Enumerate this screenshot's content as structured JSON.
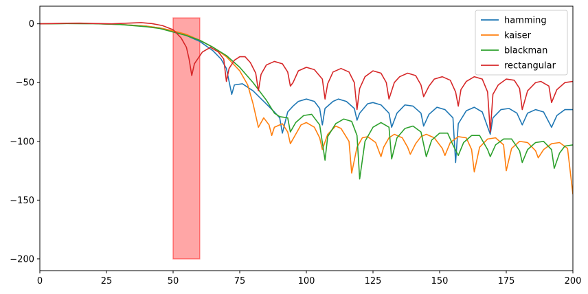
{
  "chart_data": {
    "type": "line",
    "title": "",
    "xlabel": "",
    "ylabel": "",
    "xlim": [
      0,
      200
    ],
    "ylim": [
      -210,
      15
    ],
    "xticks": [
      0,
      25,
      50,
      75,
      100,
      125,
      150,
      175,
      200
    ],
    "yticks": [
      0,
      -50,
      -100,
      -150,
      -200
    ],
    "grid": false,
    "legend_position": "top-right",
    "highlight": {
      "x0": 50,
      "x1": 60,
      "y0": -200,
      "y1": 5,
      "color": "#ff0000",
      "opacity": 0.35
    },
    "series": [
      {
        "name": "hamming",
        "color": "#1f77b4",
        "points": [
          [
            0,
            0
          ],
          [
            10,
            0.3
          ],
          [
            20,
            0.2
          ],
          [
            30,
            -0.5
          ],
          [
            40,
            -2
          ],
          [
            45,
            -3.5
          ],
          [
            50,
            -6
          ],
          [
            55,
            -10
          ],
          [
            60,
            -15
          ],
          [
            65,
            -23
          ],
          [
            68,
            -30
          ],
          [
            70,
            -38
          ],
          [
            72,
            -60
          ],
          [
            73,
            -52
          ],
          [
            76,
            -51
          ],
          [
            80,
            -57
          ],
          [
            84,
            -66
          ],
          [
            88,
            -75
          ],
          [
            90,
            -80
          ],
          [
            91,
            -93
          ],
          [
            93,
            -75
          ],
          [
            95,
            -70
          ],
          [
            97,
            -66
          ],
          [
            100,
            -64
          ],
          [
            103,
            -66
          ],
          [
            105,
            -72
          ],
          [
            106,
            -86
          ],
          [
            107,
            -72
          ],
          [
            110,
            -66
          ],
          [
            112,
            -64
          ],
          [
            115,
            -66
          ],
          [
            118,
            -72
          ],
          [
            119,
            -82
          ],
          [
            120,
            -76
          ],
          [
            123,
            -68
          ],
          [
            125,
            -67
          ],
          [
            128,
            -69
          ],
          [
            131,
            -76
          ],
          [
            132,
            -88
          ],
          [
            134,
            -76
          ],
          [
            137,
            -69
          ],
          [
            140,
            -70
          ],
          [
            143,
            -76
          ],
          [
            144,
            -87
          ],
          [
            146,
            -77
          ],
          [
            149,
            -71
          ],
          [
            152,
            -73
          ],
          [
            155,
            -80
          ],
          [
            156,
            -118
          ],
          [
            157,
            -85
          ],
          [
            160,
            -74
          ],
          [
            163,
            -71
          ],
          [
            166,
            -75
          ],
          [
            169,
            -94
          ],
          [
            170,
            -80
          ],
          [
            173,
            -73
          ],
          [
            176,
            -72
          ],
          [
            179,
            -76
          ],
          [
            181,
            -86
          ],
          [
            183,
            -76
          ],
          [
            186,
            -73
          ],
          [
            189,
            -75
          ],
          [
            192,
            -88
          ],
          [
            194,
            -78
          ],
          [
            197,
            -73
          ],
          [
            200,
            -73
          ]
        ]
      },
      {
        "name": "kaiser",
        "color": "#ff7f0e",
        "points": [
          [
            0,
            0
          ],
          [
            10,
            0.3
          ],
          [
            20,
            0.2
          ],
          [
            30,
            -0.5
          ],
          [
            40,
            -2
          ],
          [
            45,
            -3.5
          ],
          [
            50,
            -6
          ],
          [
            55,
            -9
          ],
          [
            60,
            -14
          ],
          [
            65,
            -20
          ],
          [
            70,
            -28
          ],
          [
            75,
            -40
          ],
          [
            78,
            -52
          ],
          [
            80,
            -68
          ],
          [
            82,
            -88
          ],
          [
            84,
            -80
          ],
          [
            86,
            -86
          ],
          [
            87,
            -95
          ],
          [
            88,
            -88
          ],
          [
            91,
            -85
          ],
          [
            93,
            -92
          ],
          [
            94,
            -102
          ],
          [
            96,
            -94
          ],
          [
            98,
            -86
          ],
          [
            100,
            -84
          ],
          [
            103,
            -88
          ],
          [
            105,
            -97
          ],
          [
            106,
            -107
          ],
          [
            108,
            -94
          ],
          [
            111,
            -87
          ],
          [
            113,
            -89
          ],
          [
            116,
            -100
          ],
          [
            117,
            -127
          ],
          [
            119,
            -105
          ],
          [
            121,
            -97
          ],
          [
            123,
            -96
          ],
          [
            126,
            -101
          ],
          [
            128,
            -113
          ],
          [
            129,
            -105
          ],
          [
            131,
            -97
          ],
          [
            133,
            -94
          ],
          [
            136,
            -97
          ],
          [
            138,
            -105
          ],
          [
            139,
            -111
          ],
          [
            141,
            -102
          ],
          [
            143,
            -96
          ],
          [
            145,
            -94
          ],
          [
            148,
            -97
          ],
          [
            151,
            -106
          ],
          [
            152,
            -112
          ],
          [
            154,
            -101
          ],
          [
            157,
            -96
          ],
          [
            160,
            -97
          ],
          [
            162,
            -107
          ],
          [
            163,
            -126
          ],
          [
            165,
            -105
          ],
          [
            168,
            -98
          ],
          [
            171,
            -97
          ],
          [
            174,
            -103
          ],
          [
            175,
            -125
          ],
          [
            177,
            -106
          ],
          [
            180,
            -100
          ],
          [
            183,
            -101
          ],
          [
            186,
            -108
          ],
          [
            187,
            -114
          ],
          [
            189,
            -107
          ],
          [
            192,
            -102
          ],
          [
            195,
            -101
          ],
          [
            198,
            -106
          ],
          [
            200,
            -145
          ]
        ]
      },
      {
        "name": "blackman",
        "color": "#2ca02c",
        "points": [
          [
            0,
            0
          ],
          [
            10,
            0.2
          ],
          [
            20,
            0.1
          ],
          [
            30,
            -0.6
          ],
          [
            40,
            -2.5
          ],
          [
            45,
            -4
          ],
          [
            50,
            -7
          ],
          [
            55,
            -10
          ],
          [
            60,
            -14
          ],
          [
            65,
            -20
          ],
          [
            70,
            -27
          ],
          [
            75,
            -37
          ],
          [
            80,
            -50
          ],
          [
            85,
            -65
          ],
          [
            88,
            -76
          ],
          [
            90,
            -79
          ],
          [
            93,
            -80
          ],
          [
            94,
            -92
          ],
          [
            96,
            -84
          ],
          [
            99,
            -78
          ],
          [
            102,
            -77
          ],
          [
            105,
            -86
          ],
          [
            107,
            -116
          ],
          [
            108,
            -96
          ],
          [
            111,
            -85
          ],
          [
            114,
            -81
          ],
          [
            117,
            -83
          ],
          [
            119,
            -95
          ],
          [
            120,
            -132
          ],
          [
            122,
            -100
          ],
          [
            125,
            -88
          ],
          [
            128,
            -84
          ],
          [
            131,
            -88
          ],
          [
            132,
            -115
          ],
          [
            134,
            -97
          ],
          [
            137,
            -89
          ],
          [
            140,
            -87
          ],
          [
            143,
            -92
          ],
          [
            145,
            -113
          ],
          [
            147,
            -99
          ],
          [
            150,
            -93
          ],
          [
            153,
            -93
          ],
          [
            155,
            -103
          ],
          [
            157,
            -112
          ],
          [
            159,
            -101
          ],
          [
            162,
            -95
          ],
          [
            165,
            -95
          ],
          [
            168,
            -107
          ],
          [
            169,
            -113
          ],
          [
            171,
            -103
          ],
          [
            174,
            -98
          ],
          [
            177,
            -98
          ],
          [
            180,
            -108
          ],
          [
            181,
            -118
          ],
          [
            183,
            -107
          ],
          [
            186,
            -101
          ],
          [
            189,
            -100
          ],
          [
            192,
            -107
          ],
          [
            193,
            -123
          ],
          [
            195,
            -110
          ],
          [
            197,
            -104
          ],
          [
            200,
            -103
          ]
        ]
      },
      {
        "name": "rectangular",
        "color": "#d62728",
        "points": [
          [
            0,
            0
          ],
          [
            10,
            0.5
          ],
          [
            15,
            0.6
          ],
          [
            20,
            0.3
          ],
          [
            27,
            0
          ],
          [
            33,
            0.6
          ],
          [
            38,
            1
          ],
          [
            42,
            0.2
          ],
          [
            46,
            -1.5
          ],
          [
            50,
            -5
          ],
          [
            53,
            -12
          ],
          [
            55,
            -20
          ],
          [
            56,
            -30
          ],
          [
            57,
            -44
          ],
          [
            58,
            -34
          ],
          [
            61,
            -24
          ],
          [
            64,
            -20
          ],
          [
            67,
            -24
          ],
          [
            69,
            -30
          ],
          [
            70,
            -49
          ],
          [
            71,
            -38
          ],
          [
            73,
            -31
          ],
          [
            75,
            -28
          ],
          [
            77,
            -28
          ],
          [
            79,
            -33
          ],
          [
            81,
            -42
          ],
          [
            82,
            -57
          ],
          [
            83,
            -43
          ],
          [
            85,
            -35
          ],
          [
            88,
            -32
          ],
          [
            91,
            -34
          ],
          [
            93,
            -41
          ],
          [
            94,
            -53
          ],
          [
            95,
            -50
          ],
          [
            97,
            -40
          ],
          [
            100,
            -37
          ],
          [
            103,
            -39
          ],
          [
            106,
            -47
          ],
          [
            107,
            -64
          ],
          [
            108,
            -51
          ],
          [
            110,
            -41
          ],
          [
            113,
            -38
          ],
          [
            116,
            -41
          ],
          [
            118,
            -50
          ],
          [
            119,
            -73
          ],
          [
            120,
            -55
          ],
          [
            122,
            -45
          ],
          [
            125,
            -40
          ],
          [
            128,
            -42
          ],
          [
            130,
            -50
          ],
          [
            131,
            -64
          ],
          [
            133,
            -50
          ],
          [
            135,
            -45
          ],
          [
            138,
            -42
          ],
          [
            141,
            -44
          ],
          [
            143,
            -52
          ],
          [
            144,
            -62
          ],
          [
            146,
            -53
          ],
          [
            148,
            -47
          ],
          [
            151,
            -45
          ],
          [
            154,
            -48
          ],
          [
            156,
            -58
          ],
          [
            157,
            -70
          ],
          [
            158,
            -56
          ],
          [
            160,
            -49
          ],
          [
            163,
            -45
          ],
          [
            166,
            -47
          ],
          [
            168,
            -58
          ],
          [
            169,
            -92
          ],
          [
            170,
            -60
          ],
          [
            172,
            -52
          ],
          [
            175,
            -47
          ],
          [
            178,
            -48
          ],
          [
            180,
            -55
          ],
          [
            181,
            -73
          ],
          [
            183,
            -57
          ],
          [
            186,
            -50
          ],
          [
            188,
            -49
          ],
          [
            191,
            -53
          ],
          [
            192,
            -67
          ],
          [
            194,
            -56
          ],
          [
            197,
            -50
          ],
          [
            200,
            -49
          ]
        ]
      }
    ]
  }
}
